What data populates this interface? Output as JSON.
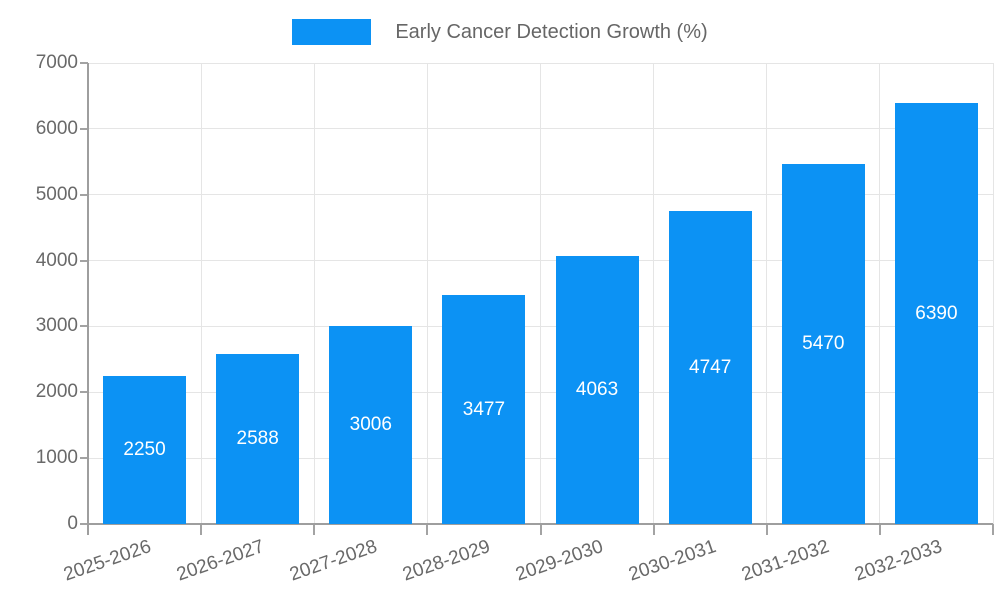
{
  "legend": {
    "label": "Early Cancer Detection Growth (%)"
  },
  "chart_data": {
    "type": "bar",
    "title": "Early Cancer Detection Growth (%)",
    "categories": [
      "2025-2026",
      "2026-2027",
      "2027-2028",
      "2028-2029",
      "2029-2030",
      "2030-2031",
      "2031-2032",
      "2032-2033"
    ],
    "values": [
      2250,
      2588,
      3006,
      3477,
      4063,
      4747,
      5470,
      6390
    ],
    "xlabel": "",
    "ylabel": "",
    "ylim": [
      0,
      7000
    ],
    "yticks": [
      0,
      1000,
      2000,
      3000,
      4000,
      5000,
      6000,
      7000
    ],
    "grid": true,
    "legend_position": "top-center",
    "value_labels": "inside-center"
  },
  "colors": {
    "bar": "#0c92f4",
    "axis": "#9e9e9e",
    "grid": "#e5e5e5",
    "tick": "#a3a3a3",
    "label_text": "#696969",
    "value_text": "#ffffff",
    "legend_text": "#666666",
    "background": "#ffffff"
  }
}
